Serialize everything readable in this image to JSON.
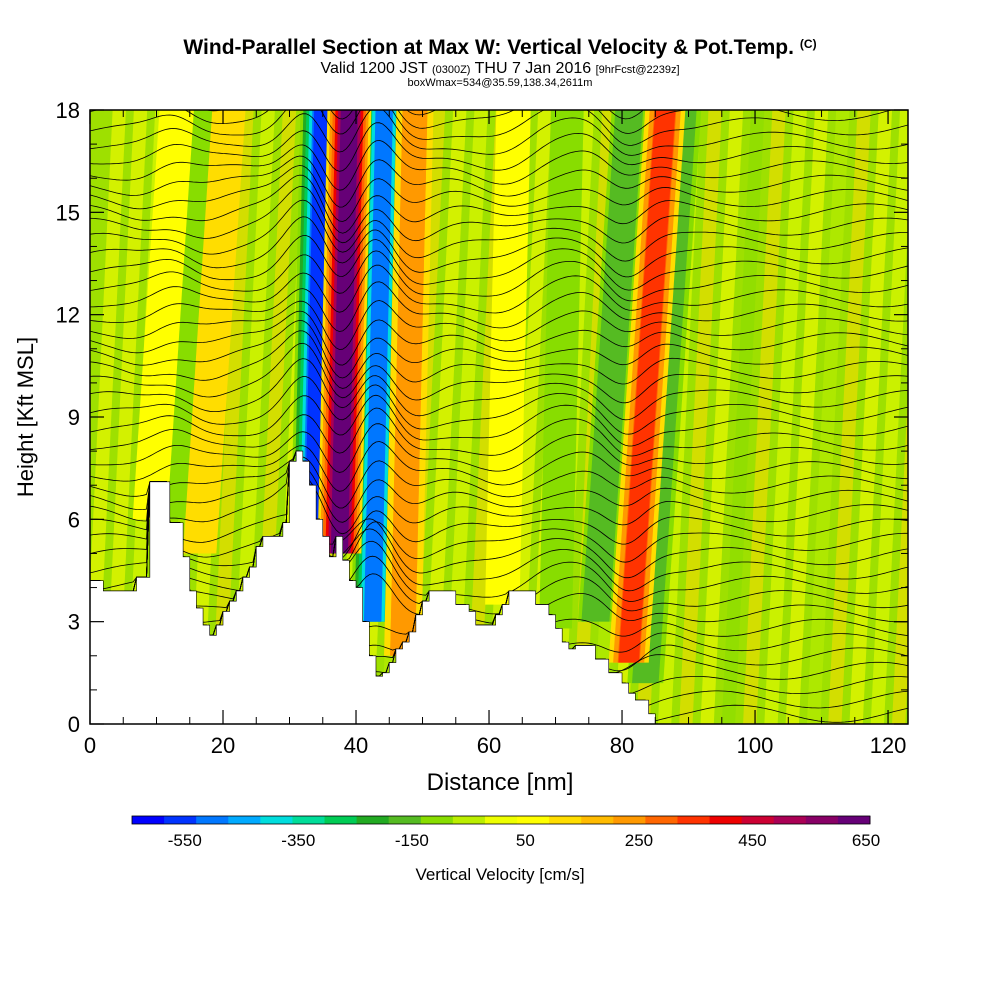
{
  "header": {
    "title": "Wind-Parallel Section at Max W: Vertical Velocity & Pot.Temp.",
    "title_mark": "(C)",
    "subtitle_main": "Valid 1200 JST",
    "subtitle_utc": "(0300Z)",
    "subtitle_date": "THU 7 Jan 2016",
    "subtitle_fcst": "[9hrFcst@2239z]",
    "subtitle2": "boxWmax=534@35.59,138.34,2611m"
  },
  "chart_data": {
    "type": "heatmap",
    "xlabel": "Distance [nm]",
    "ylabel": "Height [Kft MSL]",
    "xlim": [
      0,
      123
    ],
    "ylim": [
      0,
      18
    ],
    "x_ticks": [
      "0",
      "20",
      "40",
      "60",
      "80",
      "100",
      "120"
    ],
    "y_ticks": [
      "0",
      "3",
      "6",
      "9",
      "12",
      "15",
      "18"
    ],
    "colorbar": {
      "label": "Vertical Velocity [cm/s]",
      "tick_labels": [
        "-550",
        "-350",
        "-150",
        "50",
        "250",
        "450",
        "650"
      ],
      "colors": [
        "#0000ff",
        "#0033ff",
        "#0077ff",
        "#00aaff",
        "#00dddd",
        "#00dd99",
        "#00cc55",
        "#22aa22",
        "#55bb22",
        "#88dd00",
        "#bbee00",
        "#eeff00",
        "#ffff00",
        "#ffdd00",
        "#ffbb00",
        "#ff9900",
        "#ff6600",
        "#ff3300",
        "#ee0000",
        "#cc0033",
        "#aa0055",
        "#880066",
        "#660077"
      ]
    },
    "terrain_kft": [
      [
        0,
        4.2
      ],
      [
        2,
        4.2
      ],
      [
        2,
        3.9
      ],
      [
        7,
        3.9
      ],
      [
        7,
        4.3
      ],
      [
        9,
        4.3
      ],
      [
        9,
        7.1
      ],
      [
        12,
        7.1
      ],
      [
        12,
        5.9
      ],
      [
        14,
        5.9
      ],
      [
        14,
        4.9
      ],
      [
        15,
        4.9
      ],
      [
        15,
        3.9
      ],
      [
        16,
        3.9
      ],
      [
        16,
        3.4
      ],
      [
        17,
        3.4
      ],
      [
        17,
        2.9
      ],
      [
        18,
        2.9
      ],
      [
        18,
        2.6
      ],
      [
        19,
        2.6
      ],
      [
        19,
        2.9
      ],
      [
        20,
        2.9
      ],
      [
        20,
        3.3
      ],
      [
        21,
        3.3
      ],
      [
        21,
        3.6
      ],
      [
        22,
        3.6
      ],
      [
        22,
        3.9
      ],
      [
        23,
        3.9
      ],
      [
        23,
        4.3
      ],
      [
        24,
        4.3
      ],
      [
        24,
        4.6
      ],
      [
        25,
        4.6
      ],
      [
        25,
        5.2
      ],
      [
        26,
        5.2
      ],
      [
        26,
        5.5
      ],
      [
        29,
        5.5
      ],
      [
        29,
        5.9
      ],
      [
        30,
        5.9
      ],
      [
        30,
        7.7
      ],
      [
        31,
        7.7
      ],
      [
        31,
        8.0
      ],
      [
        32,
        8.0
      ],
      [
        32,
        7.7
      ],
      [
        33,
        7.7
      ],
      [
        33,
        7.0
      ],
      [
        34,
        7.0
      ],
      [
        34,
        6.0
      ],
      [
        35,
        6.0
      ],
      [
        35,
        5.5
      ],
      [
        36,
        5.5
      ],
      [
        36,
        4.9
      ],
      [
        37,
        4.9
      ],
      [
        37,
        5.5
      ],
      [
        38,
        5.5
      ],
      [
        38,
        4.8
      ],
      [
        39,
        4.8
      ],
      [
        39,
        4.2
      ],
      [
        40,
        4.2
      ],
      [
        40,
        4.0
      ],
      [
        41,
        4.0
      ],
      [
        41,
        3.0
      ],
      [
        42,
        3.0
      ],
      [
        42,
        2.0
      ],
      [
        43,
        2.0
      ],
      [
        43,
        1.4
      ],
      [
        44,
        1.4
      ],
      [
        44,
        1.5
      ],
      [
        45,
        1.5
      ],
      [
        45,
        1.8
      ],
      [
        46,
        1.8
      ],
      [
        46,
        2.2
      ],
      [
        47,
        2.2
      ],
      [
        47,
        2.4
      ],
      [
        48,
        2.4
      ],
      [
        48,
        2.7
      ],
      [
        49,
        2.7
      ],
      [
        49,
        3.2
      ],
      [
        50,
        3.2
      ],
      [
        50,
        3.6
      ],
      [
        51,
        3.6
      ],
      [
        51,
        3.9
      ],
      [
        55,
        3.9
      ],
      [
        55,
        3.5
      ],
      [
        57,
        3.5
      ],
      [
        57,
        3.3
      ],
      [
        58,
        3.3
      ],
      [
        58,
        2.9
      ],
      [
        61,
        2.9
      ],
      [
        61,
        3.2
      ],
      [
        62,
        3.2
      ],
      [
        62,
        3.5
      ],
      [
        63,
        3.5
      ],
      [
        63,
        3.9
      ],
      [
        67,
        3.9
      ],
      [
        67,
        3.5
      ],
      [
        69,
        3.5
      ],
      [
        69,
        3.2
      ],
      [
        70,
        3.2
      ],
      [
        70,
        2.8
      ],
      [
        71,
        2.8
      ],
      [
        71,
        2.4
      ],
      [
        72,
        2.4
      ],
      [
        72,
        2.2
      ],
      [
        73,
        2.2
      ],
      [
        73,
        2.3
      ],
      [
        76,
        2.3
      ],
      [
        76,
        1.9
      ],
      [
        78,
        1.9
      ],
      [
        78,
        1.5
      ],
      [
        80,
        1.5
      ],
      [
        80,
        1.2
      ],
      [
        81,
        1.2
      ],
      [
        81,
        0.9
      ],
      [
        82,
        0.9
      ],
      [
        82,
        0.7
      ],
      [
        84,
        0.7
      ],
      [
        84,
        0.3
      ],
      [
        85,
        0.3
      ],
      [
        85,
        0.0
      ],
      [
        123,
        0.0
      ]
    ],
    "updrafts": [
      {
        "x": 37.5,
        "bottom": 5.0,
        "w": 650
      },
      {
        "x": 47.0,
        "bottom": 2.0,
        "w": 200
      },
      {
        "x": 81.0,
        "bottom": 1.8,
        "w": 320
      },
      {
        "x": 16.5,
        "bottom": 5.0,
        "w": 90
      },
      {
        "x": 9.0,
        "bottom": 6.0,
        "w": 80
      },
      {
        "x": 62.0,
        "bottom": 3.5,
        "w": 80
      }
    ],
    "downdrafts": [
      {
        "x": 33.5,
        "bottom": 6.0,
        "w": -560
      },
      {
        "x": 42.5,
        "bottom": 3.0,
        "w": -520
      },
      {
        "x": 83.5,
        "bottom": 1.2,
        "w": -170
      },
      {
        "x": 76.0,
        "bottom": 3.0,
        "w": -150
      },
      {
        "x": 12.5,
        "bottom": 6.0,
        "w": -130
      },
      {
        "x": 70.0,
        "bottom": 2.8,
        "w": -110
      }
    ]
  }
}
